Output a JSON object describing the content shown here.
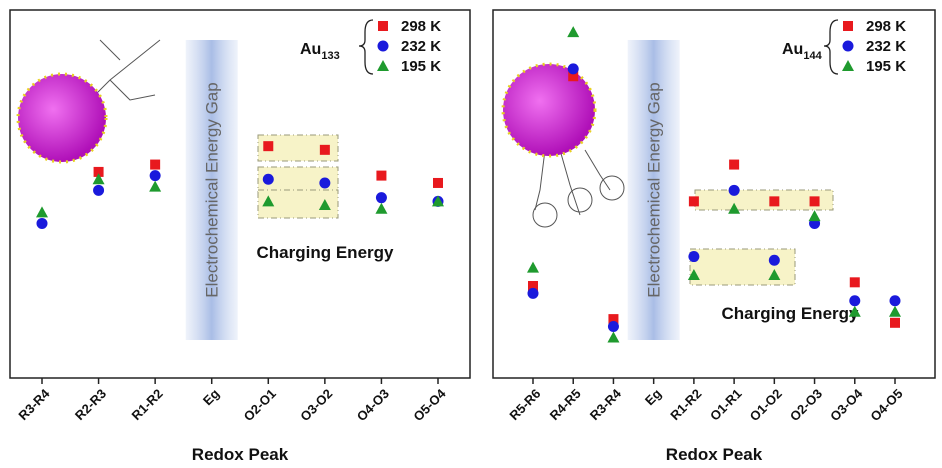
{
  "chart_data": [
    {
      "type": "scatter",
      "label_main": "Au",
      "label_sub": "133",
      "categories": [
        "R3-R4",
        "R2-R3",
        "R1-R2",
        "Eg",
        "O2-O1",
        "O3-O2",
        "O4-O3",
        "O5-O4"
      ],
      "gap_category": 3,
      "gap_label": "Electrochemical Energy Gap",
      "annotation": "Charging Energy",
      "xlabel": "Redox Peak",
      "ylim": [
        0,
        100
      ],
      "series": [
        {
          "name": "298 K",
          "color": "#e8191e",
          "marker": "square",
          "values": [
            null,
            56,
            58,
            null,
            63,
            62,
            55,
            53
          ]
        },
        {
          "name": "232 K",
          "color": "#1a1adc",
          "marker": "circle",
          "values": [
            42,
            51,
            55,
            null,
            54,
            53,
            49,
            48
          ]
        },
        {
          "name": "195 K",
          "color": "#1f9a2e",
          "marker": "triangle",
          "values": [
            45,
            54,
            52,
            null,
            48,
            47,
            46,
            48
          ]
        }
      ]
    },
    {
      "type": "scatter",
      "label_main": "Au",
      "label_sub": "144",
      "categories": [
        "R5-R6",
        "R4-R5",
        "R3-R4",
        "Eg",
        "R1-R2",
        "O1-R1",
        "O1-O2",
        "O2-O3",
        "O3-O4",
        "O4-O5"
      ],
      "gap_category": 3,
      "gap_label": "Electrochemical Energy Gap",
      "annotation": "Charging Energy",
      "xlabel": "Redox Peak",
      "ylim": [
        0,
        100
      ],
      "series": [
        {
          "name": "298 K",
          "color": "#e8191e",
          "marker": "square",
          "values": [
            25,
            82,
            16,
            null,
            48,
            58,
            48,
            48,
            26,
            15
          ]
        },
        {
          "name": "232 K",
          "color": "#1a1adc",
          "marker": "circle",
          "values": [
            23,
            84,
            14,
            null,
            33,
            51,
            32,
            42,
            21,
            21
          ]
        },
        {
          "name": "195 K",
          "color": "#1f9a2e",
          "marker": "triangle",
          "values": [
            30,
            94,
            11,
            null,
            28,
            46,
            28,
            44,
            18,
            18
          ]
        }
      ]
    }
  ]
}
